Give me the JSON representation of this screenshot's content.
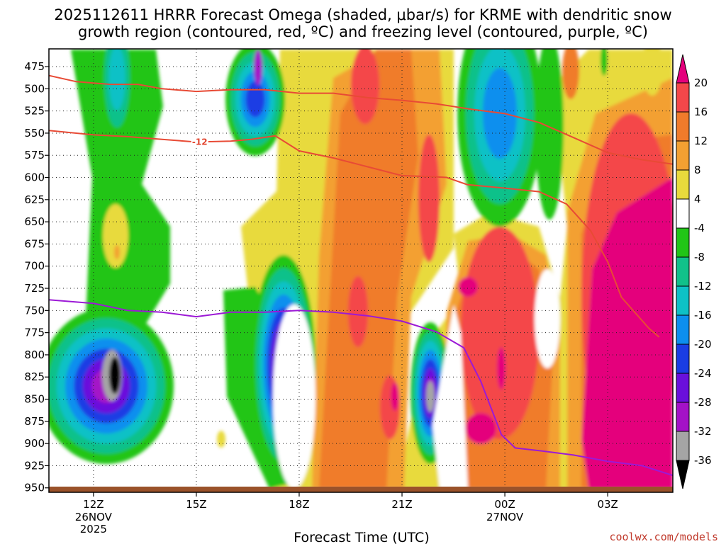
{
  "chart_data": {
    "type": "heatmap",
    "title": "2025112611 HRRR Forecast Omega (shaded, μbar/s) for KRME with dendritic snow growth region (contoured, red, ºC) and freezing level (contoured, purple, ºC)",
    "title_lines": [
      "2025112611 HRRR Forecast Omega (shaded, μbar/s) for KRME with dendritic snow",
      "growth region (contoured, red, ºC) and freezing level (contoured, purple, ºC)"
    ],
    "xlabel": "Forecast Time (UTC)",
    "ylabel": "",
    "y_scale": "pressure (mb), decreasing upward",
    "ylim": [
      955,
      455
    ],
    "xlim_hours": [
      10.7,
      28.9
    ],
    "x_ticks": [
      {
        "hour": 12,
        "label": "12Z",
        "sub": [
          "26NOV",
          "2025"
        ]
      },
      {
        "hour": 15,
        "label": "15Z",
        "sub": []
      },
      {
        "hour": 18,
        "label": "18Z",
        "sub": []
      },
      {
        "hour": 21,
        "label": "21Z",
        "sub": []
      },
      {
        "hour": 24,
        "label": "00Z",
        "sub": [
          "27NOV"
        ]
      },
      {
        "hour": 27,
        "label": "03Z",
        "sub": []
      }
    ],
    "y_ticks": [
      475,
      500,
      525,
      550,
      575,
      600,
      625,
      650,
      675,
      700,
      725,
      750,
      775,
      800,
      825,
      850,
      875,
      900,
      925,
      950
    ],
    "grid": "dotted",
    "colorbar": {
      "labels": [
        "20",
        "16",
        "12",
        "8",
        "4",
        "-4",
        "-8",
        "-12",
        "-16",
        "-20",
        "-24",
        "-28",
        "-32",
        "-36"
      ],
      "bins": [
        {
          "range": "> 20",
          "color": "#e4007c"
        },
        {
          "range": "16 to 20",
          "color": "#f4474a"
        },
        {
          "range": "12 to 16",
          "color": "#f07b2b"
        },
        {
          "range": "8 to 12",
          "color": "#f3a032"
        },
        {
          "range": "4 to 8",
          "color": "#e8da3c"
        },
        {
          "range": "-4 to 4",
          "color": "#ffffff"
        },
        {
          "range": "-8 to -4",
          "color": "#21c517"
        },
        {
          "range": "-12 to -8",
          "color": "#11c18a"
        },
        {
          "range": "-16 to -12",
          "color": "#0ec1c6"
        },
        {
          "range": "-20 to -16",
          "color": "#0c8fee"
        },
        {
          "range": "-24 to -20",
          "color": "#1a3de4"
        },
        {
          "range": "-28 to -24",
          "color": "#6a10dc"
        },
        {
          "range": "-32 to -28",
          "color": "#a412c7"
        },
        {
          "range": "-36 to -32",
          "color": "#a5a5a5"
        },
        {
          "range": "< -36",
          "color": "#000000"
        }
      ]
    },
    "contours": {
      "dendritic_growth_region": {
        "color": "#e84a35",
        "label": "-12",
        "lines": [
          {
            "points": [
              [
                10.7,
                485
              ],
              [
                11.5,
                492
              ],
              [
                12.5,
                495
              ],
              [
                13.3,
                495
              ],
              [
                14,
                500
              ],
              [
                15,
                503
              ],
              [
                16,
                501
              ],
              [
                17,
                501
              ],
              [
                18,
                505
              ],
              [
                19,
                505
              ],
              [
                20,
                510
              ],
              [
                21,
                513
              ],
              [
                22,
                517
              ],
              [
                23,
                523
              ],
              [
                24,
                528
              ],
              [
                25,
                538
              ],
              [
                26,
                555
              ],
              [
                27,
                572
              ],
              [
                28,
                580
              ],
              [
                28.9,
                585
              ]
            ]
          },
          {
            "points": [
              [
                10.7,
                547
              ],
              [
                12,
                552
              ],
              [
                13,
                554
              ],
              [
                14,
                557
              ],
              [
                15,
                560
              ],
              [
                16,
                559
              ],
              [
                16.6,
                557
              ],
              [
                17.3,
                553
              ],
              [
                18,
                570
              ],
              [
                19,
                578
              ],
              [
                20,
                588
              ],
              [
                21,
                598
              ],
              [
                21.8,
                599
              ],
              [
                22.3,
                600
              ],
              [
                22.9,
                608
              ],
              [
                24,
                612
              ],
              [
                25,
                616
              ],
              [
                25.8,
                630
              ],
              [
                26.5,
                660
              ],
              [
                27,
                695
              ],
              [
                27.4,
                735
              ],
              [
                28.2,
                770
              ],
              [
                28.5,
                780
              ]
            ]
          }
        ]
      },
      "freezing_level": {
        "color": "#9c19d6",
        "lines": [
          {
            "points": [
              [
                10.7,
                738
              ],
              [
                12,
                742
              ],
              [
                13,
                750
              ],
              [
                14,
                752
              ],
              [
                15,
                757
              ],
              [
                16,
                752
              ],
              [
                17,
                752
              ],
              [
                18,
                750
              ],
              [
                19,
                752
              ],
              [
                20,
                756
              ],
              [
                21,
                762
              ],
              [
                22,
                774
              ],
              [
                22.8,
                792
              ],
              [
                23.3,
                830
              ],
              [
                23.6,
                860
              ],
              [
                23.9,
                890
              ],
              [
                24.3,
                905
              ],
              [
                25,
                908
              ],
              [
                26,
                913
              ],
              [
                27,
                920
              ],
              [
                28,
                925
              ],
              [
                28.9,
                936
              ]
            ]
          }
        ]
      }
    },
    "shaded_features": [
      {
        "time_hr": 12.9,
        "pressure_mb": 795,
        "value_min": "< -36"
      },
      {
        "time_hr": 17.9,
        "pressure_mb": 785,
        "value_min": "-32 to -28"
      },
      {
        "time_hr": 22.0,
        "pressure_mb": 820,
        "value_min": "-36 to -32"
      },
      {
        "time_hr": 17.1,
        "pressure_mb": 487,
        "value_min": "-24 to -20"
      },
      {
        "time_hr": 24.0,
        "pressure_mb": 510,
        "value_min": "-20 to -16"
      },
      {
        "time_hr": 20.0,
        "pressure_mb": 480,
        "value_min": "16 to 20"
      },
      {
        "time_hr": 27.8,
        "pressure_mb": 700,
        "value_min": "> 20"
      },
      {
        "time_hr": 24.1,
        "pressure_mb": 690,
        "value_min": "> 20"
      }
    ]
  },
  "credit": "coolwx.com/models"
}
